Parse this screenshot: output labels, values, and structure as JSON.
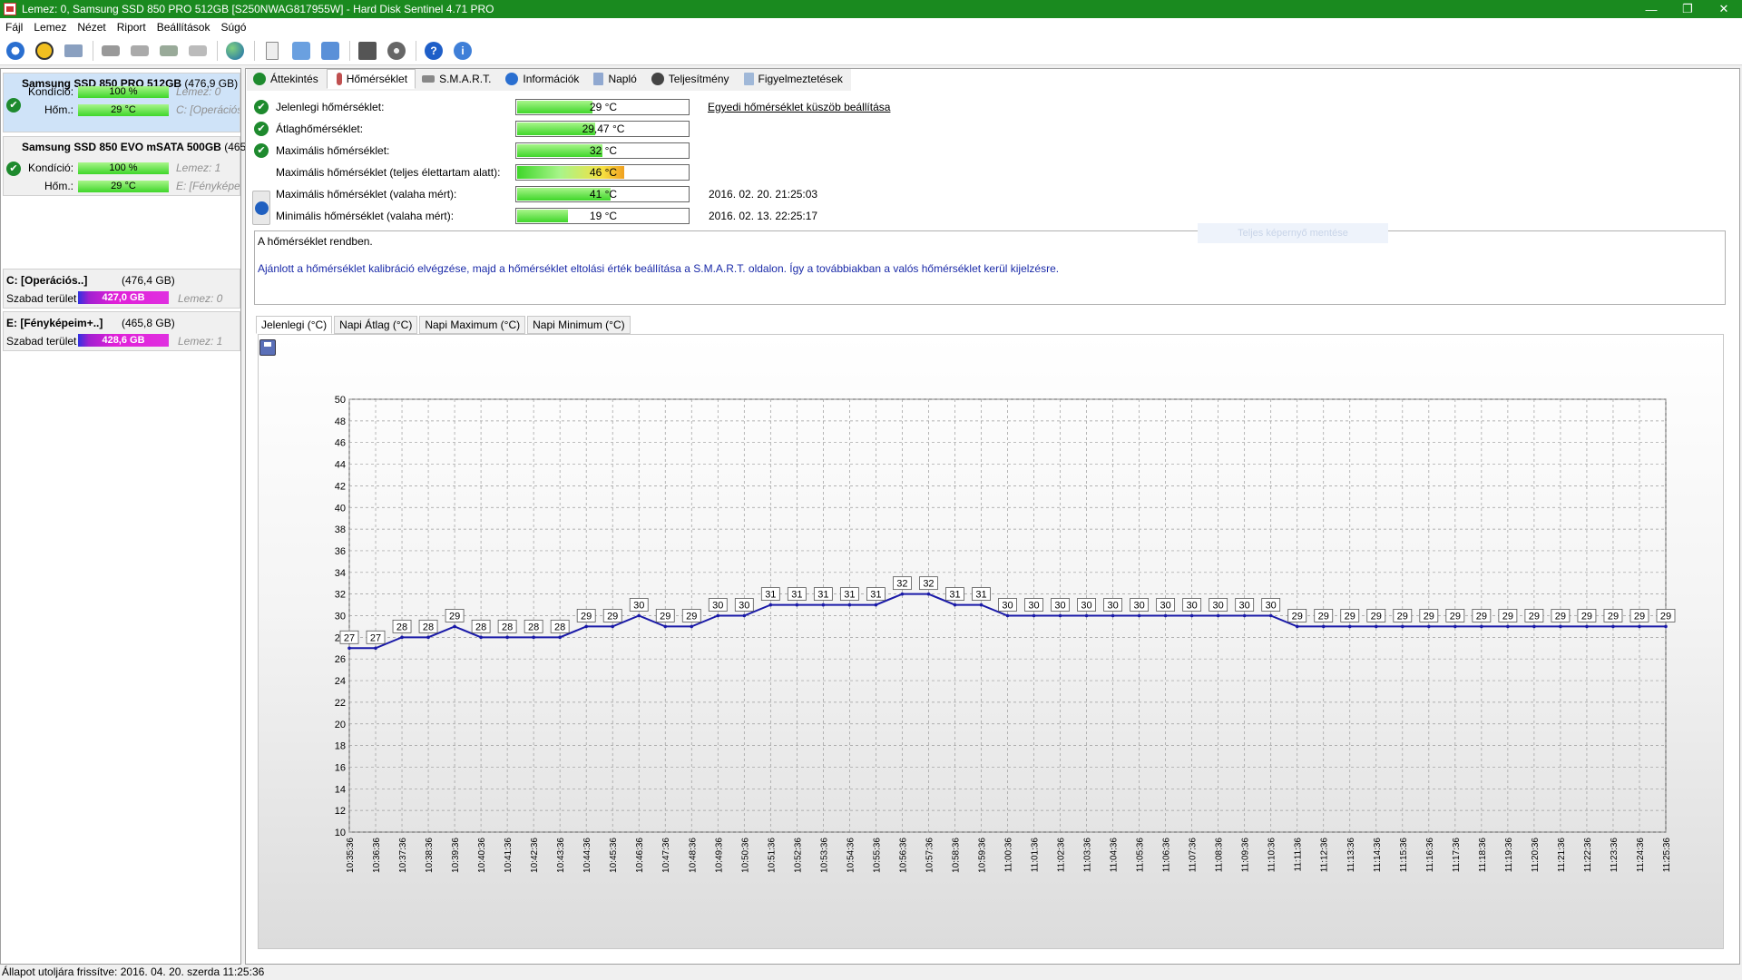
{
  "window": {
    "title": "Lemez: 0, Samsung SSD 850 PRO 512GB [S250NWAG817955W] - Hard Disk Sentinel 4.71 PRO"
  },
  "menu": [
    "Fájl",
    "Lemez",
    "Nézet",
    "Riport",
    "Beállítások",
    "Súgó"
  ],
  "disks": [
    {
      "name": "Samsung SSD 850 PRO 512GB",
      "size": "(476,9 GB)",
      "health_label": "Kondíció:",
      "health": "100 %",
      "health_side": "Lemez: 0",
      "temp_label": "Hőm.:",
      "temp": "29 °C",
      "temp_side": "C: [Operációs"
    },
    {
      "name": "Samsung SSD 850 EVO mSATA 500GB",
      "size": "(465,",
      "health_label": "Kondíció:",
      "health": "100 %",
      "health_side": "Lemez: 1",
      "temp_label": "Hőm.:",
      "temp": "29 °C",
      "temp_side": "E: [Fényképeim"
    }
  ],
  "volumes": [
    {
      "name": "C: [Operációs..]",
      "size": "(476,4 GB)",
      "free_label": "Szabad terület",
      "free": "427,0 GB",
      "disk": "Lemez: 0"
    },
    {
      "name": "E: [Fényképeim+..]",
      "size": "(465,8 GB)",
      "free_label": "Szabad terület",
      "free": "428,6 GB",
      "disk": "Lemez: 1"
    }
  ],
  "tabs": [
    "Áttekintés",
    "Hőmérséklet",
    "S.M.A.R.T.",
    "Információk",
    "Napló",
    "Teljesítmény",
    "Figyelmeztetések"
  ],
  "temps": [
    {
      "label": "Jelenlegi hőmérséklet:",
      "value": "29 °C",
      "level": 0.44,
      "date": ""
    },
    {
      "label": "Átlaghőmérséklet:",
      "value": "29,47 °C",
      "level": 0.46,
      "date": ""
    },
    {
      "label": "Maximális hőmérséklet:",
      "value": "32 °C",
      "level": 0.5,
      "date": ""
    },
    {
      "label": "Maximális hőmérséklet (teljes élettartam alatt):",
      "value": "46 °C",
      "level": 0.63,
      "date": ""
    },
    {
      "label": "Maximális hőmérséklet (valaha mért):",
      "value": "41 °C",
      "level": 0.55,
      "date": "2016. 02. 20. 21:25:03"
    },
    {
      "label": "Minimális hőmérséklet (valaha mért):",
      "value": "19 °C",
      "level": 0.3,
      "date": "2016. 02. 13. 22:25:17"
    }
  ],
  "threshold_link": "Egyedi hőmérséklet küszöb beállítása",
  "message": {
    "line1": "A hőmérséklet rendben.",
    "line2": "Ajánlott a hőmérséklet kalibráció elvégzése, majd a hőmérséklet eltolási érték beállítása a S.M.A.R.T. oldalon. Így a továbbiakban a valós hőmérséklet kerül kijelzésre."
  },
  "ghost_button": "Teljes képernyő mentése",
  "chart_tabs": [
    "Jelenlegi (°C)",
    "Napi Átlag (°C)",
    "Napi Maximum (°C)",
    "Napi Minimum (°C)"
  ],
  "chart_data": {
    "type": "line",
    "title": "",
    "xlabel": "",
    "ylabel": "",
    "ylim": [
      10,
      50
    ],
    "yticks": [
      10,
      12,
      14,
      16,
      18,
      20,
      22,
      24,
      26,
      28,
      30,
      32,
      34,
      36,
      38,
      40,
      42,
      44,
      46,
      48,
      50
    ],
    "x": [
      "10:35:36",
      "10:36:36",
      "10:37:36",
      "10:38:36",
      "10:39:36",
      "10:40:36",
      "10:41:36",
      "10:42:36",
      "10:43:36",
      "10:44:36",
      "10:45:36",
      "10:46:36",
      "10:47:36",
      "10:48:36",
      "10:49:36",
      "10:50:36",
      "10:51:36",
      "10:52:36",
      "10:53:36",
      "10:54:36",
      "10:55:36",
      "10:56:36",
      "10:57:36",
      "10:58:36",
      "10:59:36",
      "11:00:36",
      "11:01:36",
      "11:02:36",
      "11:03:36",
      "11:04:36",
      "11:05:36",
      "11:06:36",
      "11:07:36",
      "11:08:36",
      "11:09:36",
      "11:10:36",
      "11:11:36",
      "11:12:36",
      "11:13:36",
      "11:14:36",
      "11:15:36",
      "11:16:36",
      "11:17:36",
      "11:18:36",
      "11:19:36",
      "11:20:36",
      "11:21:36",
      "11:22:36",
      "11:23:36",
      "11:24:36",
      "11:25:36"
    ],
    "values": [
      27,
      27,
      28,
      28,
      29,
      28,
      28,
      28,
      28,
      29,
      29,
      30,
      29,
      29,
      30,
      30,
      31,
      31,
      31,
      31,
      31,
      32,
      32,
      31,
      31,
      30,
      30,
      30,
      30,
      30,
      30,
      30,
      30,
      30,
      30,
      30,
      29,
      29,
      29,
      29,
      29,
      29,
      29,
      29,
      29,
      29,
      29,
      29,
      29,
      29,
      29
    ],
    "grid": true,
    "line_color": "#1a1aa8"
  },
  "status": "Állapot utoljára frissítve: 2016. 04. 20. szerda 11:25:36"
}
